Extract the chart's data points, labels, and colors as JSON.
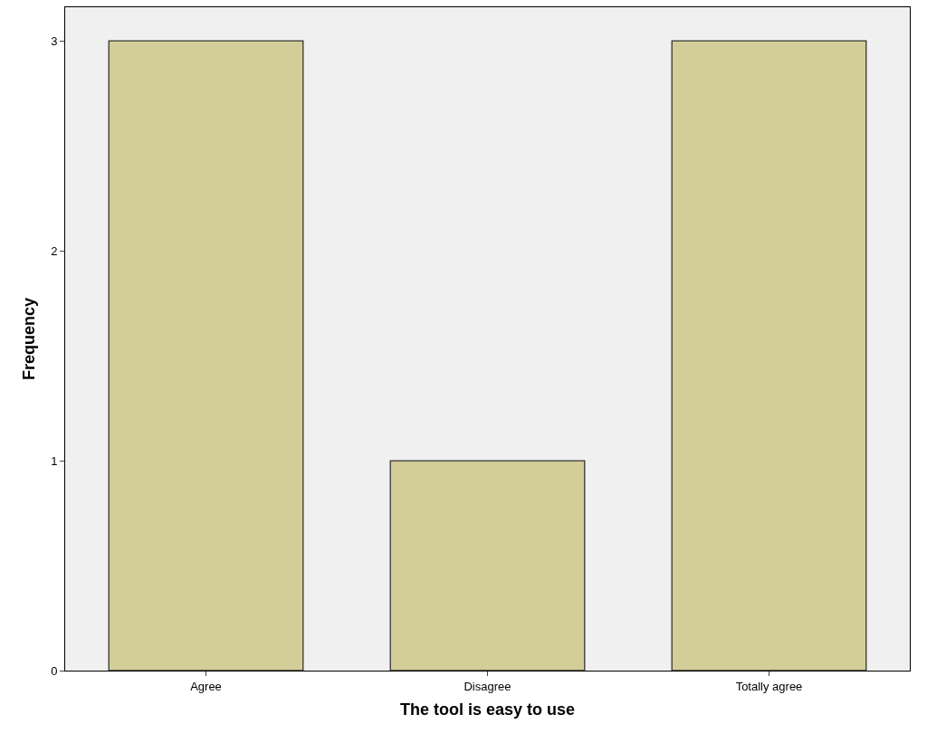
{
  "chart_data": {
    "type": "bar",
    "xlabel": "The tool is easy to use",
    "ylabel": "Frequency",
    "categories": [
      "Agree",
      "Disagree",
      "Totally agree"
    ],
    "values": [
      3,
      1,
      3
    ],
    "color": "#d3ce97",
    "ylim": [
      0,
      3.16
    ],
    "yticks": [
      0,
      1,
      2,
      3
    ],
    "grid": false
  }
}
